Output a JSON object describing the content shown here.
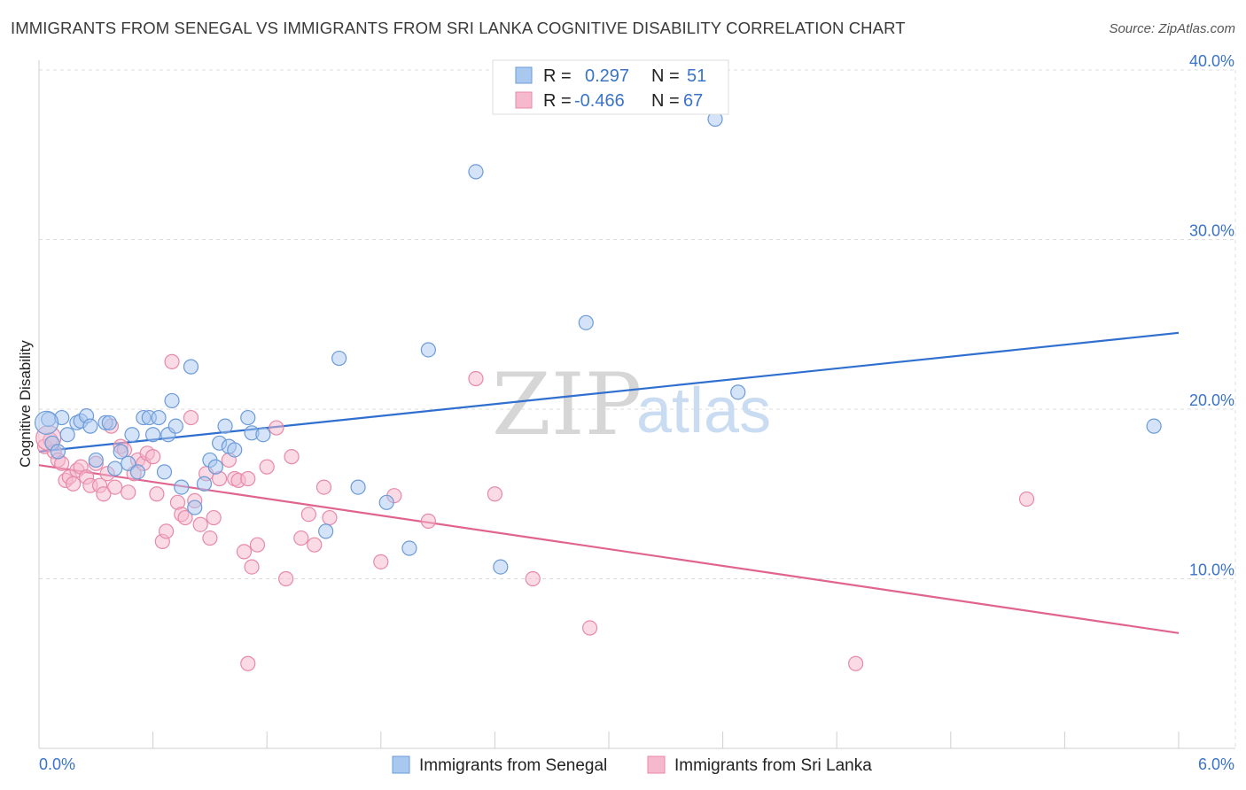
{
  "header": {
    "title": "IMMIGRANTS FROM SENEGAL VS IMMIGRANTS FROM SRI LANKA COGNITIVE DISABILITY CORRELATION CHART",
    "source": "Source: ZipAtlas.com"
  },
  "watermark": {
    "zip": "ZIP",
    "atlas": "atlas"
  },
  "colors": {
    "senegal_fill": "#a9c8f0",
    "senegal_stroke": "#6b9bd8",
    "senegal_line": "#2f6fcf",
    "srilanka_fill": "#f6b8cc",
    "srilanka_stroke": "#e889a8",
    "srilanka_line": "#e0648f",
    "grid": "#dddddd",
    "axis_text": "#3a73c8"
  },
  "legend": {
    "rows": [
      {
        "r_label": "R =",
        "r_value": "0.297",
        "n_label": "N =",
        "n_value": "51"
      },
      {
        "r_label": "R =",
        "r_value": "-0.466",
        "n_label": "N =",
        "n_value": "67"
      }
    ]
  },
  "chart_data": {
    "type": "scatter",
    "title": "IMMIGRANTS FROM SENEGAL VS IMMIGRANTS FROM SRI LANKA COGNITIVE DISABILITY CORRELATION CHART",
    "xlabel": "",
    "ylabel": "Cognitive Disability",
    "xlim": [
      0,
      6
    ],
    "ylim": [
      0,
      40
    ],
    "x_tick_labels": [
      "0.0%",
      "6.0%"
    ],
    "y_ticks": [
      10,
      20,
      30,
      40
    ],
    "y_tick_labels": [
      "10.0%",
      "20.0%",
      "30.0%",
      "40.0%"
    ],
    "grid": true,
    "legend_position": "bottom",
    "series": [
      {
        "name": "Immigrants from Senegal",
        "r": 0.297,
        "n": 51,
        "trend": {
          "x": [
            0,
            6
          ],
          "y": [
            17.5,
            24.5
          ]
        },
        "points": [
          [
            0.05,
            19.4
          ],
          [
            0.07,
            18.0
          ],
          [
            0.1,
            17.5
          ],
          [
            0.12,
            19.5
          ],
          [
            0.15,
            18.5
          ],
          [
            0.2,
            19.2
          ],
          [
            0.22,
            19.3
          ],
          [
            0.25,
            19.6
          ],
          [
            0.27,
            19.0
          ],
          [
            0.3,
            17.0
          ],
          [
            0.35,
            19.2
          ],
          [
            0.37,
            19.2
          ],
          [
            0.4,
            16.5
          ],
          [
            0.43,
            17.5
          ],
          [
            0.47,
            16.8
          ],
          [
            0.49,
            18.5
          ],
          [
            0.52,
            16.3
          ],
          [
            0.55,
            19.5
          ],
          [
            0.58,
            19.5
          ],
          [
            0.6,
            18.5
          ],
          [
            0.63,
            19.5
          ],
          [
            0.66,
            16.3
          ],
          [
            0.68,
            18.5
          ],
          [
            0.7,
            20.5
          ],
          [
            0.72,
            19.0
          ],
          [
            0.75,
            15.4
          ],
          [
            0.8,
            22.5
          ],
          [
            0.82,
            14.2
          ],
          [
            0.87,
            15.6
          ],
          [
            0.9,
            17.0
          ],
          [
            0.93,
            16.6
          ],
          [
            0.95,
            18.0
          ],
          [
            0.98,
            19.0
          ],
          [
            1.0,
            17.8
          ],
          [
            1.03,
            17.6
          ],
          [
            1.1,
            19.5
          ],
          [
            1.12,
            18.6
          ],
          [
            1.18,
            18.5
          ],
          [
            1.58,
            23.0
          ],
          [
            1.51,
            12.8
          ],
          [
            1.68,
            15.4
          ],
          [
            1.83,
            14.5
          ],
          [
            1.95,
            11.8
          ],
          [
            2.05,
            23.5
          ],
          [
            2.3,
            34.0
          ],
          [
            2.43,
            10.7
          ],
          [
            2.88,
            25.1
          ],
          [
            3.56,
            37.1
          ],
          [
            3.68,
            21.0
          ],
          [
            5.87,
            19.0
          ],
          [
            0.04,
            19.2
          ]
        ]
      },
      {
        "name": "Immigrants from Sri Lanka",
        "r": -0.466,
        "n": 67,
        "trend": {
          "x": [
            0,
            6
          ],
          "y": [
            16.7,
            6.8
          ]
        },
        "points": [
          [
            0.03,
            17.8
          ],
          [
            0.06,
            18.2
          ],
          [
            0.08,
            17.5
          ],
          [
            0.1,
            17.0
          ],
          [
            0.12,
            16.8
          ],
          [
            0.14,
            15.8
          ],
          [
            0.16,
            16.0
          ],
          [
            0.18,
            15.6
          ],
          [
            0.2,
            16.4
          ],
          [
            0.22,
            16.6
          ],
          [
            0.25,
            16.0
          ],
          [
            0.27,
            15.5
          ],
          [
            0.3,
            16.8
          ],
          [
            0.32,
            15.5
          ],
          [
            0.34,
            15.0
          ],
          [
            0.36,
            16.2
          ],
          [
            0.38,
            19.0
          ],
          [
            0.4,
            15.4
          ],
          [
            0.43,
            17.8
          ],
          [
            0.45,
            17.6
          ],
          [
            0.47,
            15.1
          ],
          [
            0.5,
            16.2
          ],
          [
            0.52,
            17.0
          ],
          [
            0.55,
            16.8
          ],
          [
            0.57,
            17.4
          ],
          [
            0.6,
            17.2
          ],
          [
            0.62,
            15.0
          ],
          [
            0.65,
            12.2
          ],
          [
            0.67,
            12.8
          ],
          [
            0.7,
            22.8
          ],
          [
            0.73,
            14.5
          ],
          [
            0.75,
            13.8
          ],
          [
            0.77,
            13.6
          ],
          [
            0.8,
            19.5
          ],
          [
            0.82,
            14.6
          ],
          [
            0.85,
            13.2
          ],
          [
            0.88,
            16.2
          ],
          [
            0.9,
            12.4
          ],
          [
            0.92,
            13.6
          ],
          [
            0.95,
            15.9
          ],
          [
            1.0,
            17.0
          ],
          [
            1.03,
            15.9
          ],
          [
            1.05,
            15.8
          ],
          [
            1.08,
            11.6
          ],
          [
            1.1,
            15.9
          ],
          [
            1.12,
            10.7
          ],
          [
            1.15,
            12.0
          ],
          [
            1.2,
            16.6
          ],
          [
            1.25,
            18.9
          ],
          [
            1.3,
            10.0
          ],
          [
            1.33,
            17.2
          ],
          [
            1.38,
            12.4
          ],
          [
            1.42,
            13.8
          ],
          [
            1.45,
            12.0
          ],
          [
            1.5,
            15.4
          ],
          [
            1.53,
            13.6
          ],
          [
            1.8,
            11.0
          ],
          [
            1.87,
            14.9
          ],
          [
            2.05,
            13.4
          ],
          [
            2.3,
            21.8
          ],
          [
            2.4,
            15.0
          ],
          [
            2.6,
            10.0
          ],
          [
            2.9,
            7.1
          ],
          [
            1.1,
            5.0
          ],
          [
            4.3,
            5.0
          ],
          [
            5.2,
            14.7
          ],
          [
            0.05,
            18.3
          ]
        ]
      }
    ]
  },
  "bottom_legend": {
    "senegal": "Immigrants from Senegal",
    "srilanka": "Immigrants from Sri Lanka"
  }
}
